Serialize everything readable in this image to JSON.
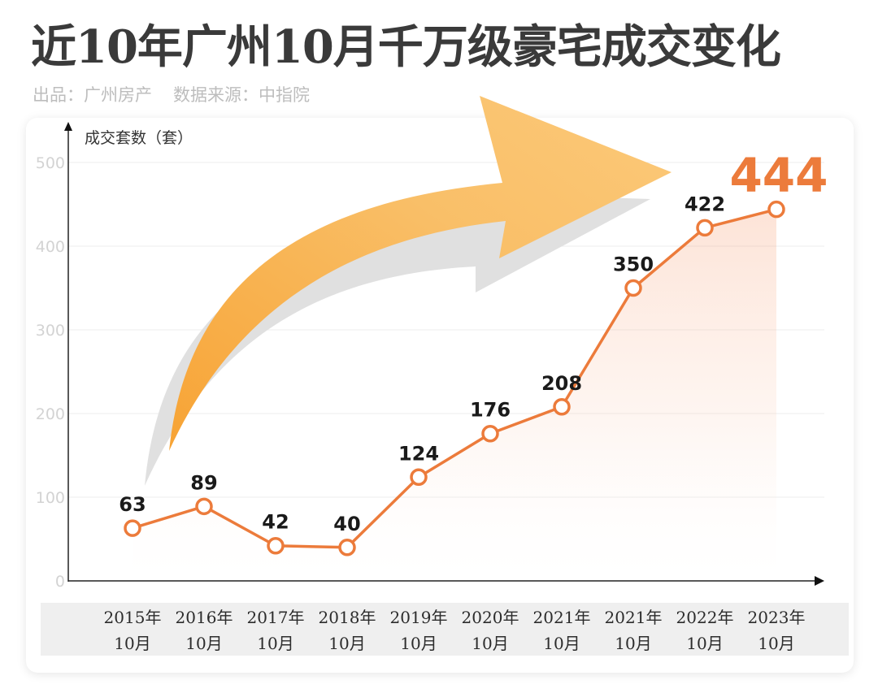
{
  "title": "近10年广州10月千万级豪宅成交变化",
  "credit": {
    "publisher": "出品：广州房产",
    "source": "数据来源：中指院"
  },
  "colors": {
    "line": "#ec7b3b",
    "arrow": "#f6a13e",
    "highlight": "#ec7b3b"
  },
  "chart_data": {
    "type": "line",
    "title": "近10年广州10月千万级豪宅成交变化",
    "ylabel": "成交套数（套）",
    "xlabel": "",
    "ylim": [
      0,
      500
    ],
    "yticks": [
      0,
      100,
      200,
      300,
      400,
      500
    ],
    "grid": true,
    "categories": [
      [
        "2015年",
        "10月"
      ],
      [
        "2016年",
        "10月"
      ],
      [
        "2017年",
        "10月"
      ],
      [
        "2018年",
        "10月"
      ],
      [
        "2019年",
        "10月"
      ],
      [
        "2020年",
        "10月"
      ],
      [
        "2021年",
        "10月"
      ],
      [
        "2021年",
        "10月"
      ],
      [
        "2022年",
        "10月"
      ],
      [
        "2023年",
        "10月"
      ]
    ],
    "series": [
      {
        "values": [
          63,
          89,
          42,
          40,
          124,
          176,
          208,
          350,
          422,
          444
        ]
      }
    ],
    "highlight_last": true
  }
}
